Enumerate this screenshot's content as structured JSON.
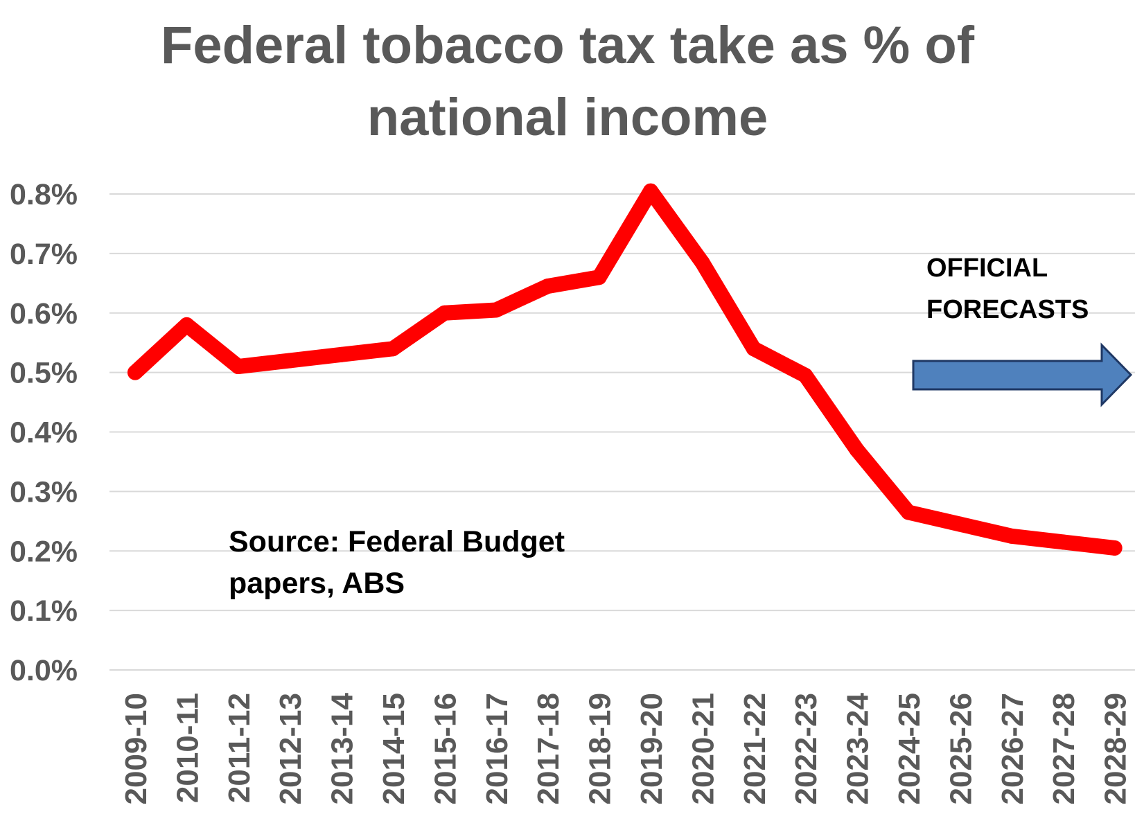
{
  "chart_data": {
    "type": "line",
    "title_lines": [
      "Federal tobacco tax take as % of",
      "national income"
    ],
    "categories": [
      "2009-10",
      "2010-11",
      "2011-12",
      "2012-13",
      "2013-14",
      "2014-15",
      "2015-16",
      "2016-17",
      "2017-18",
      "2018-19",
      "2019-20",
      "2020-21",
      "2021-22",
      "2022-23",
      "2023-24",
      "2024-25",
      "2025-26",
      "2026-27",
      "2027-28",
      "2028-29"
    ],
    "series": [
      {
        "name": "Federal tobacco tax take as % of national income",
        "values": [
          0.5,
          0.58,
          0.51,
          0.52,
          0.53,
          0.54,
          0.6,
          0.605,
          0.645,
          0.66,
          0.805,
          0.685,
          0.54,
          0.495,
          0.37,
          0.265,
          0.245,
          0.225,
          0.215,
          0.205
        ],
        "color": "#ff0000"
      }
    ],
    "y_ticks": [
      "0.0%",
      "0.1%",
      "0.2%",
      "0.3%",
      "0.4%",
      "0.5%",
      "0.6%",
      "0.7%",
      "0.8%"
    ],
    "ylim": [
      0,
      0.8
    ],
    "grid": true,
    "legend": "none",
    "annotations": {
      "source_lines": [
        "Source:  Federal Budget",
        "papers, ABS"
      ],
      "forecast_lines": [
        "OFFICIAL",
        "FORECASTS"
      ],
      "arrow_color": "#4f81bd",
      "arrow_edge_color": "#1f3864"
    }
  }
}
